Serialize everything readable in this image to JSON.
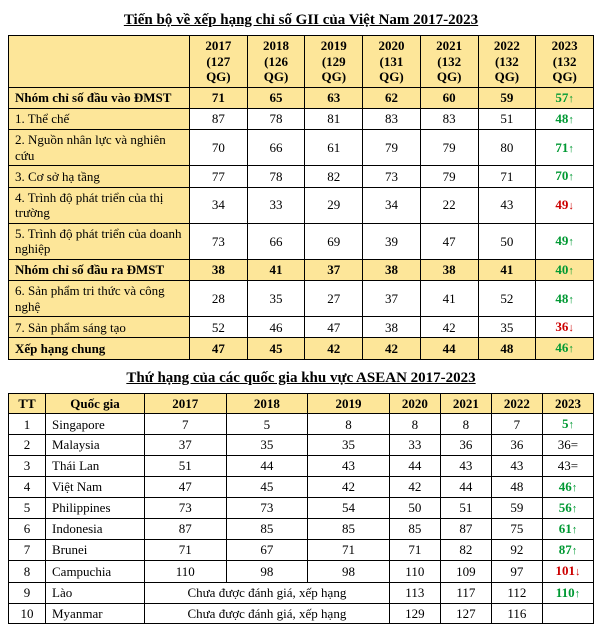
{
  "table1": {
    "title": "Tiến bộ về xếp hạng chỉ số GII của Việt Nam 2017-2023",
    "years": [
      "2017",
      "2018",
      "2019",
      "2020",
      "2021",
      "2022",
      "2023"
    ],
    "yearSubs": [
      "(127 QG)",
      "(126 QG)",
      "(129 QG)",
      "(131 QG)",
      "(132 QG)",
      "(132 QG)",
      "(132 QG)"
    ],
    "rows": [
      {
        "label": "Nhóm chỉ số đầu vào ĐMST",
        "group": true,
        "vals": [
          "71",
          "65",
          "63",
          "62",
          "60",
          "59"
        ],
        "last": "57",
        "dir": "up"
      },
      {
        "label": "1. Thể chế",
        "vals": [
          "87",
          "78",
          "81",
          "83",
          "83",
          "51"
        ],
        "last": "48",
        "dir": "up"
      },
      {
        "label": "2. Nguồn nhân lực và nghiên cứu",
        "vals": [
          "70",
          "66",
          "61",
          "79",
          "79",
          "80"
        ],
        "last": "71",
        "dir": "up"
      },
      {
        "label": "3. Cơ sở hạ tầng",
        "vals": [
          "77",
          "78",
          "82",
          "73",
          "79",
          "71"
        ],
        "last": "70",
        "dir": "up"
      },
      {
        "label": "4. Trình độ phát triển của thị trường",
        "vals": [
          "34",
          "33",
          "29",
          "34",
          "22",
          "43"
        ],
        "last": "49",
        "dir": "down"
      },
      {
        "label": "5. Trình độ phát triển của doanh nghiệp",
        "vals": [
          "73",
          "66",
          "69",
          "39",
          "47",
          "50"
        ],
        "last": "49",
        "dir": "up"
      },
      {
        "label": "Nhóm chỉ số đầu ra ĐMST",
        "group": true,
        "vals": [
          "38",
          "41",
          "37",
          "38",
          "38",
          "41"
        ],
        "last": "40",
        "dir": "up"
      },
      {
        "label": "6. Sản phẩm tri thức và công nghệ",
        "vals": [
          "28",
          "35",
          "27",
          "37",
          "41",
          "52"
        ],
        "last": "48",
        "dir": "up"
      },
      {
        "label": "7. Sản phẩm sáng tạo",
        "vals": [
          "52",
          "46",
          "47",
          "38",
          "42",
          "35"
        ],
        "last": "36",
        "dir": "down"
      },
      {
        "label": "Xếp hạng chung",
        "group": true,
        "vals": [
          "47",
          "45",
          "42",
          "42",
          "44",
          "48"
        ],
        "last": "46",
        "dir": "up"
      }
    ]
  },
  "table2": {
    "title": "Thứ hạng của các quốc gia khu vực ASEAN 2017-2023",
    "headers": [
      "TT",
      "Quốc gia",
      "2017",
      "2018",
      "2019",
      "2020",
      "2021",
      "2022",
      "2023"
    ],
    "rows": [
      {
        "tt": "1",
        "name": "Singapore",
        "vals": [
          "7",
          "5",
          "8",
          "8",
          "8",
          "7"
        ],
        "last": "5",
        "dir": "up"
      },
      {
        "tt": "2",
        "name": "Malaysia",
        "vals": [
          "37",
          "35",
          "35",
          "33",
          "36",
          "36"
        ],
        "last": "36",
        "dir": "eq"
      },
      {
        "tt": "3",
        "name": "Thái Lan",
        "vals": [
          "51",
          "44",
          "43",
          "44",
          "43",
          "43"
        ],
        "last": "43",
        "dir": "eq"
      },
      {
        "tt": "4",
        "name": "Việt Nam",
        "vals": [
          "47",
          "45",
          "42",
          "42",
          "44",
          "48"
        ],
        "last": "46",
        "dir": "up"
      },
      {
        "tt": "5",
        "name": "Philippines",
        "vals": [
          "73",
          "73",
          "54",
          "50",
          "51",
          "59"
        ],
        "last": "56",
        "dir": "up"
      },
      {
        "tt": "6",
        "name": "Indonesia",
        "vals": [
          "87",
          "85",
          "85",
          "85",
          "87",
          "75"
        ],
        "last": "61",
        "dir": "up"
      },
      {
        "tt": "7",
        "name": "Brunei",
        "vals": [
          "71",
          "67",
          "71",
          "71",
          "82",
          "92"
        ],
        "last": "87",
        "dir": "up"
      },
      {
        "tt": "8",
        "name": "Campuchia",
        "vals": [
          "110",
          "98",
          "98",
          "110",
          "109",
          "97"
        ],
        "last": "101",
        "dir": "down"
      },
      {
        "tt": "9",
        "name": "Lào",
        "merge": "Chưa được đánh giá, xếp hạng",
        "tail": [
          "113",
          "117",
          "112"
        ],
        "last": "110",
        "dir": "up"
      },
      {
        "tt": "10",
        "name": "Myanmar",
        "merge": "Chưa được đánh giá, xếp hạng",
        "tail": [
          "129",
          "127",
          "116"
        ],
        "last": ""
      }
    ]
  },
  "arrows": {
    "up": "↑",
    "down": "↓",
    "eq": "="
  }
}
